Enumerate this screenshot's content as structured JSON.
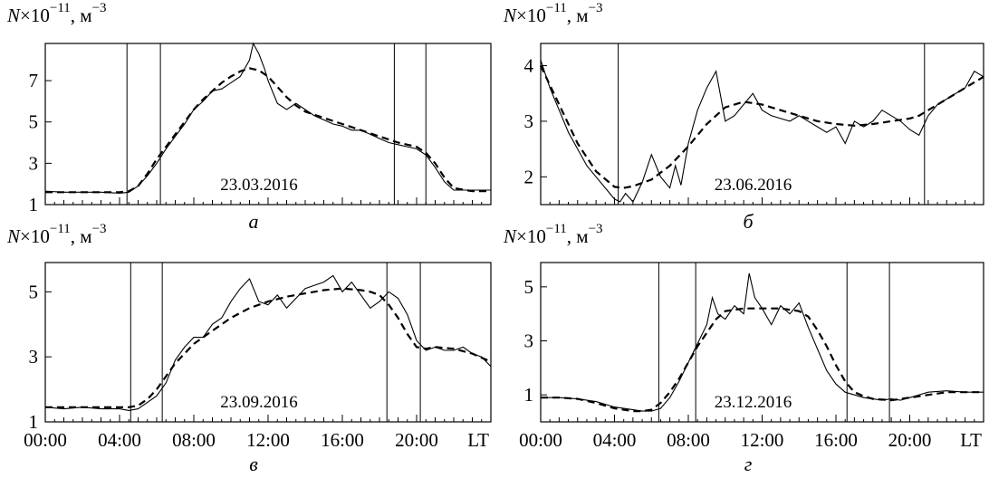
{
  "chart_data": [
    {
      "type": "line",
      "panel_label": "а",
      "date_label": "23.03.2016",
      "ylabel_prefix": "N×10",
      "ylabel_exp": "−11",
      "ylabel_unit": ", м",
      "ylabel_unit_exp": "−3",
      "xlim": [
        0,
        24
      ],
      "ylim": [
        1,
        8.8
      ],
      "yticks": [
        1,
        3,
        5,
        7
      ],
      "xticks": [
        0,
        4,
        8,
        12,
        16,
        20
      ],
      "xtick_labels": [],
      "x_unit_label": "",
      "vlines": [
        4.4,
        6.2,
        18.8,
        20.5
      ],
      "series": [
        {
          "style": "solid",
          "x": [
            0,
            1,
            2,
            3,
            4,
            4.5,
            5,
            5.5,
            6,
            6.5,
            7,
            7.5,
            8,
            8.5,
            9,
            9.5,
            10,
            10.5,
            11,
            11.2,
            11.5,
            11.8,
            12,
            12.5,
            13,
            13.5,
            14,
            14.5,
            15,
            15.5,
            16,
            16.5,
            17,
            17.5,
            18,
            18.5,
            19,
            19.5,
            20,
            20.5,
            21,
            21.5,
            22,
            23,
            24
          ],
          "y": [
            1.65,
            1.6,
            1.6,
            1.6,
            1.55,
            1.6,
            1.9,
            2.4,
            3.0,
            3.7,
            4.3,
            4.9,
            5.6,
            6.0,
            6.5,
            6.6,
            6.9,
            7.2,
            8.0,
            8.8,
            8.3,
            7.6,
            7.0,
            5.9,
            5.6,
            5.9,
            5.6,
            5.3,
            5.1,
            4.9,
            4.8,
            4.6,
            4.6,
            4.4,
            4.2,
            4.0,
            3.9,
            3.8,
            3.7,
            3.4,
            2.8,
            2.1,
            1.7,
            1.7,
            1.7
          ]
        },
        {
          "style": "dashed",
          "x": [
            0,
            1,
            2,
            3,
            4,
            4.5,
            5,
            5.5,
            6,
            6.5,
            7,
            7.5,
            8,
            8.5,
            9,
            9.5,
            10,
            10.5,
            11,
            11.5,
            12,
            12.5,
            13,
            13.5,
            14,
            15,
            16,
            17,
            18,
            19,
            19.5,
            20,
            20.5,
            21,
            21.5,
            22,
            23,
            24
          ],
          "y": [
            1.6,
            1.6,
            1.6,
            1.6,
            1.6,
            1.65,
            1.9,
            2.5,
            3.2,
            3.8,
            4.4,
            5.0,
            5.6,
            6.1,
            6.5,
            6.9,
            7.2,
            7.45,
            7.6,
            7.5,
            7.2,
            6.7,
            6.2,
            5.8,
            5.5,
            5.2,
            4.9,
            4.6,
            4.3,
            4.0,
            3.9,
            3.8,
            3.5,
            3.0,
            2.3,
            1.8,
            1.65,
            1.65
          ]
        }
      ]
    },
    {
      "type": "line",
      "panel_label": "б",
      "date_label": "23.06.2016",
      "ylabel_prefix": "N×10",
      "ylabel_exp": "−11",
      "ylabel_unit": ", м",
      "ylabel_unit_exp": "−3",
      "xlim": [
        0,
        24
      ],
      "ylim": [
        1.5,
        4.4
      ],
      "yticks": [
        2,
        3,
        4
      ],
      "xticks": [
        0,
        4,
        8,
        12,
        16,
        20
      ],
      "xtick_labels": [],
      "x_unit_label": "",
      "vlines": [
        4.2,
        20.8
      ],
      "series": [
        {
          "style": "solid",
          "x": [
            0,
            0.5,
            1,
            1.5,
            2,
            2.5,
            3,
            3.5,
            4,
            4.3,
            4.6,
            5,
            5.5,
            6,
            6.5,
            7,
            7.3,
            7.6,
            8,
            8.5,
            9,
            9.5,
            10,
            10.5,
            11,
            11.5,
            12,
            12.5,
            13,
            13.5,
            14,
            15,
            15.5,
            16,
            16.5,
            17,
            17.5,
            18,
            18.5,
            19,
            19.5,
            20,
            20.5,
            21,
            21.5,
            22,
            22.5,
            23,
            23.5,
            24
          ],
          "y": [
            4.1,
            3.6,
            3.2,
            2.8,
            2.5,
            2.2,
            2.0,
            1.8,
            1.6,
            1.55,
            1.7,
            1.55,
            1.9,
            2.4,
            2.0,
            1.8,
            2.2,
            1.85,
            2.6,
            3.2,
            3.6,
            3.9,
            3.0,
            3.1,
            3.3,
            3.5,
            3.2,
            3.1,
            3.05,
            3.0,
            3.1,
            2.9,
            2.8,
            2.9,
            2.6,
            3.0,
            2.9,
            3.0,
            3.2,
            3.1,
            3.0,
            2.85,
            2.75,
            3.1,
            3.3,
            3.4,
            3.5,
            3.6,
            3.9,
            3.8
          ]
        },
        {
          "style": "dashed",
          "x": [
            0,
            1,
            2,
            3,
            4,
            4.5,
            5,
            6,
            7,
            8,
            9,
            10,
            11,
            12,
            13,
            14,
            15,
            16,
            17,
            18,
            19,
            20,
            20.5,
            21,
            22,
            23,
            24
          ],
          "y": [
            4.0,
            3.3,
            2.6,
            2.1,
            1.82,
            1.8,
            1.83,
            1.95,
            2.2,
            2.55,
            2.95,
            3.25,
            3.35,
            3.3,
            3.2,
            3.1,
            3.0,
            2.95,
            2.92,
            2.95,
            3.0,
            3.05,
            3.1,
            3.2,
            3.4,
            3.6,
            3.8
          ]
        }
      ]
    },
    {
      "type": "line",
      "panel_label": "в",
      "date_label": "23.09.2016",
      "ylabel_prefix": "N×10",
      "ylabel_exp": "−11",
      "ylabel_unit": ", м",
      "ylabel_unit_exp": "−3",
      "xlim": [
        0,
        24
      ],
      "ylim": [
        1,
        5.9
      ],
      "yticks": [
        1,
        3,
        5
      ],
      "xticks": [
        0,
        4,
        8,
        12,
        16,
        20
      ],
      "xtick_labels": [
        "00:00",
        "04:00",
        "08:00",
        "12:00",
        "16:00",
        "20:00"
      ],
      "x_unit_label": "LT",
      "vlines": [
        4.6,
        6.3,
        18.4,
        20.2
      ],
      "series": [
        {
          "style": "solid",
          "x": [
            0,
            1,
            2,
            3,
            4,
            4.5,
            5,
            5.5,
            6,
            6.5,
            7,
            7.5,
            8,
            8.5,
            9,
            9.5,
            10,
            10.5,
            11,
            11.5,
            12,
            12.5,
            13,
            13.5,
            14,
            14.5,
            15,
            15.5,
            16,
            16.5,
            17,
            17.5,
            18,
            18.5,
            19,
            19.5,
            20,
            20.5,
            21,
            21.5,
            22,
            22.5,
            23,
            23.5,
            24
          ],
          "y": [
            1.45,
            1.4,
            1.45,
            1.4,
            1.4,
            1.35,
            1.4,
            1.6,
            1.8,
            2.2,
            2.9,
            3.3,
            3.6,
            3.6,
            4.0,
            4.2,
            4.7,
            5.1,
            5.4,
            4.7,
            4.6,
            4.9,
            4.5,
            4.8,
            5.1,
            5.2,
            5.3,
            5.5,
            5.0,
            5.3,
            4.9,
            4.5,
            4.7,
            5.0,
            4.8,
            4.3,
            3.5,
            3.2,
            3.3,
            3.2,
            3.2,
            3.3,
            3.1,
            3.0,
            2.7
          ]
        },
        {
          "style": "dashed",
          "x": [
            0,
            1,
            2,
            3,
            4,
            4.5,
            5,
            5.5,
            6,
            6.5,
            7,
            7.5,
            8,
            9,
            10,
            11,
            12,
            13,
            14,
            15,
            16,
            17,
            17.5,
            18,
            18.5,
            19,
            19.5,
            20,
            20.5,
            21,
            22,
            23,
            24
          ],
          "y": [
            1.45,
            1.45,
            1.45,
            1.45,
            1.45,
            1.45,
            1.5,
            1.7,
            2.0,
            2.4,
            2.8,
            3.1,
            3.4,
            3.8,
            4.2,
            4.5,
            4.7,
            4.85,
            4.95,
            5.05,
            5.1,
            5.05,
            5.0,
            4.9,
            4.6,
            4.2,
            3.7,
            3.3,
            3.25,
            3.3,
            3.25,
            3.1,
            2.85
          ]
        }
      ]
    },
    {
      "type": "line",
      "panel_label": "г",
      "date_label": "23.12.2016",
      "ylabel_prefix": "N×10",
      "ylabel_exp": "−11",
      "ylabel_unit": ", м",
      "ylabel_unit_exp": "−3",
      "xlim": [
        0,
        24
      ],
      "ylim": [
        0,
        5.9
      ],
      "yticks": [
        1,
        3,
        5
      ],
      "xticks": [
        0,
        4,
        8,
        12,
        16,
        20
      ],
      "xtick_labels": [
        "00:00",
        "04:00",
        "08:00",
        "12:00",
        "16:00",
        "20:00"
      ],
      "x_unit_label": "LT",
      "vlines": [
        6.4,
        8.4,
        16.6,
        18.9
      ],
      "series": [
        {
          "style": "solid",
          "x": [
            0,
            1,
            2,
            3,
            4,
            5,
            5.5,
            6,
            6.5,
            7,
            7.5,
            8,
            8.5,
            9,
            9.3,
            9.6,
            10,
            10.5,
            11,
            11.3,
            11.6,
            12,
            12.5,
            13,
            13.5,
            14,
            14.5,
            15,
            15.5,
            16,
            16.5,
            17,
            17.5,
            18,
            18.5,
            19,
            19.5,
            20,
            21,
            22,
            23,
            24
          ],
          "y": [
            0.9,
            0.9,
            0.85,
            0.75,
            0.55,
            0.45,
            0.4,
            0.4,
            0.5,
            0.9,
            1.5,
            2.2,
            2.9,
            3.6,
            4.6,
            4.0,
            3.8,
            4.3,
            4.0,
            5.5,
            4.6,
            4.2,
            3.6,
            4.3,
            4.0,
            4.4,
            3.5,
            2.7,
            1.9,
            1.4,
            1.1,
            1.0,
            0.9,
            0.85,
            0.8,
            0.85,
            0.8,
            0.9,
            1.1,
            1.15,
            1.1,
            1.1
          ]
        },
        {
          "style": "dashed",
          "x": [
            0,
            1,
            2,
            3,
            4,
            5,
            5.5,
            6,
            6.5,
            7,
            7.5,
            8,
            8.5,
            9,
            9.5,
            10,
            11,
            12,
            13,
            14,
            14.5,
            15,
            15.5,
            16,
            16.5,
            17,
            17.5,
            18,
            19,
            20,
            21,
            22,
            23,
            24
          ],
          "y": [
            0.9,
            0.9,
            0.85,
            0.7,
            0.5,
            0.4,
            0.4,
            0.45,
            0.7,
            1.1,
            1.6,
            2.2,
            2.8,
            3.3,
            3.8,
            4.1,
            4.2,
            4.2,
            4.2,
            4.1,
            3.9,
            3.4,
            2.8,
            2.1,
            1.5,
            1.1,
            0.95,
            0.85,
            0.8,
            0.9,
            1.0,
            1.1,
            1.1,
            1.1
          ]
        }
      ]
    }
  ]
}
